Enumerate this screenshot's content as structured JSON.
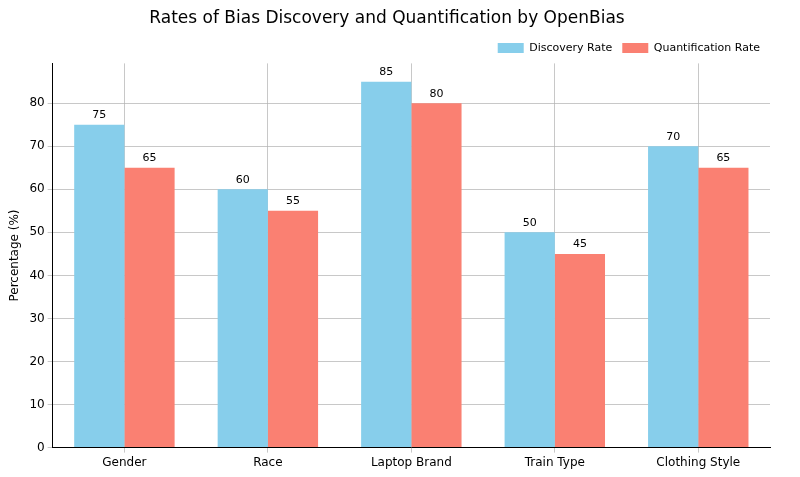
{
  "chart_data": {
    "type": "bar",
    "title": "Rates of Bias Discovery and Quantification by OpenBias",
    "y_label": "Percentage (%)",
    "categories": [
      "Gender",
      "Race",
      "Laptop Brand",
      "Train Type",
      "Clothing Style"
    ],
    "series": [
      {
        "name": "Discovery Rate",
        "color": "#87ceeb",
        "values": [
          75,
          60,
          85,
          50,
          70
        ]
      },
      {
        "name": "Quantification Rate",
        "color": "#fa8072",
        "values": [
          65,
          55,
          80,
          45,
          65
        ]
      }
    ],
    "ylim": [
      0,
      89.25
    ],
    "yticks": [
      0,
      10,
      20,
      30,
      40,
      50,
      60,
      70,
      80
    ],
    "grid": true,
    "legend": "upper right",
    "data_labels": true
  }
}
